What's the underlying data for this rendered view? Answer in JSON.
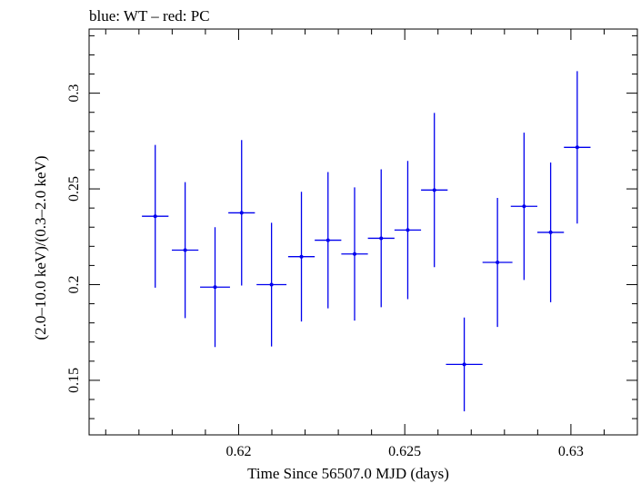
{
  "chart_data": {
    "type": "scatter",
    "title": "blue: WT – red: PC",
    "xlabel": "Time Since 56507.0 MJD (days)",
    "ylabel": "(2.0–10.0 keV)/(0.3–2.0 keV)",
    "xlim": [
      0.6155,
      0.632
    ],
    "ylim": [
      0.1215,
      0.3335
    ],
    "x_ticks": [
      0.62,
      0.625,
      0.63
    ],
    "x_tick_labels": [
      "0.62",
      "0.625",
      "0.63"
    ],
    "y_ticks": [
      0.15,
      0.2,
      0.25,
      0.3
    ],
    "y_tick_labels": [
      "0.15",
      "0.2",
      "0.25",
      "0.3"
    ],
    "grid": false,
    "series": [
      {
        "color": "#0000ee",
        "points": [
          {
            "x": 0.61749,
            "xerr": 0.0004,
            "y": 0.2357,
            "yerr": 0.0373
          },
          {
            "x": 0.61839,
            "xerr": 0.0004,
            "y": 0.218,
            "yerr": 0.0355
          },
          {
            "x": 0.61929,
            "xerr": 0.00045,
            "y": 0.1987,
            "yerr": 0.0313
          },
          {
            "x": 0.62009,
            "xerr": 0.0004,
            "y": 0.2375,
            "yerr": 0.038
          },
          {
            "x": 0.62099,
            "xerr": 0.00045,
            "y": 0.2,
            "yerr": 0.0323
          },
          {
            "x": 0.62189,
            "xerr": 0.0004,
            "y": 0.2146,
            "yerr": 0.0339
          },
          {
            "x": 0.62269,
            "xerr": 0.0004,
            "y": 0.2232,
            "yerr": 0.0356
          },
          {
            "x": 0.62349,
            "xerr": 0.0004,
            "y": 0.216,
            "yerr": 0.0348
          },
          {
            "x": 0.62429,
            "xerr": 0.0004,
            "y": 0.2242,
            "yerr": 0.036
          },
          {
            "x": 0.62509,
            "xerr": 0.0004,
            "y": 0.2285,
            "yerr": 0.0361
          },
          {
            "x": 0.62589,
            "xerr": 0.0004,
            "y": 0.2494,
            "yerr": 0.0403
          },
          {
            "x": 0.62679,
            "xerr": 0.00055,
            "y": 0.1583,
            "yerr": 0.0245
          },
          {
            "x": 0.62779,
            "xerr": 0.00045,
            "y": 0.2116,
            "yerr": 0.0337
          },
          {
            "x": 0.62859,
            "xerr": 0.0004,
            "y": 0.2409,
            "yerr": 0.0385
          },
          {
            "x": 0.62939,
            "xerr": 0.0004,
            "y": 0.2273,
            "yerr": 0.0365
          },
          {
            "x": 0.63019,
            "xerr": 0.0004,
            "y": 0.2717,
            "yerr": 0.0398
          }
        ]
      }
    ]
  }
}
